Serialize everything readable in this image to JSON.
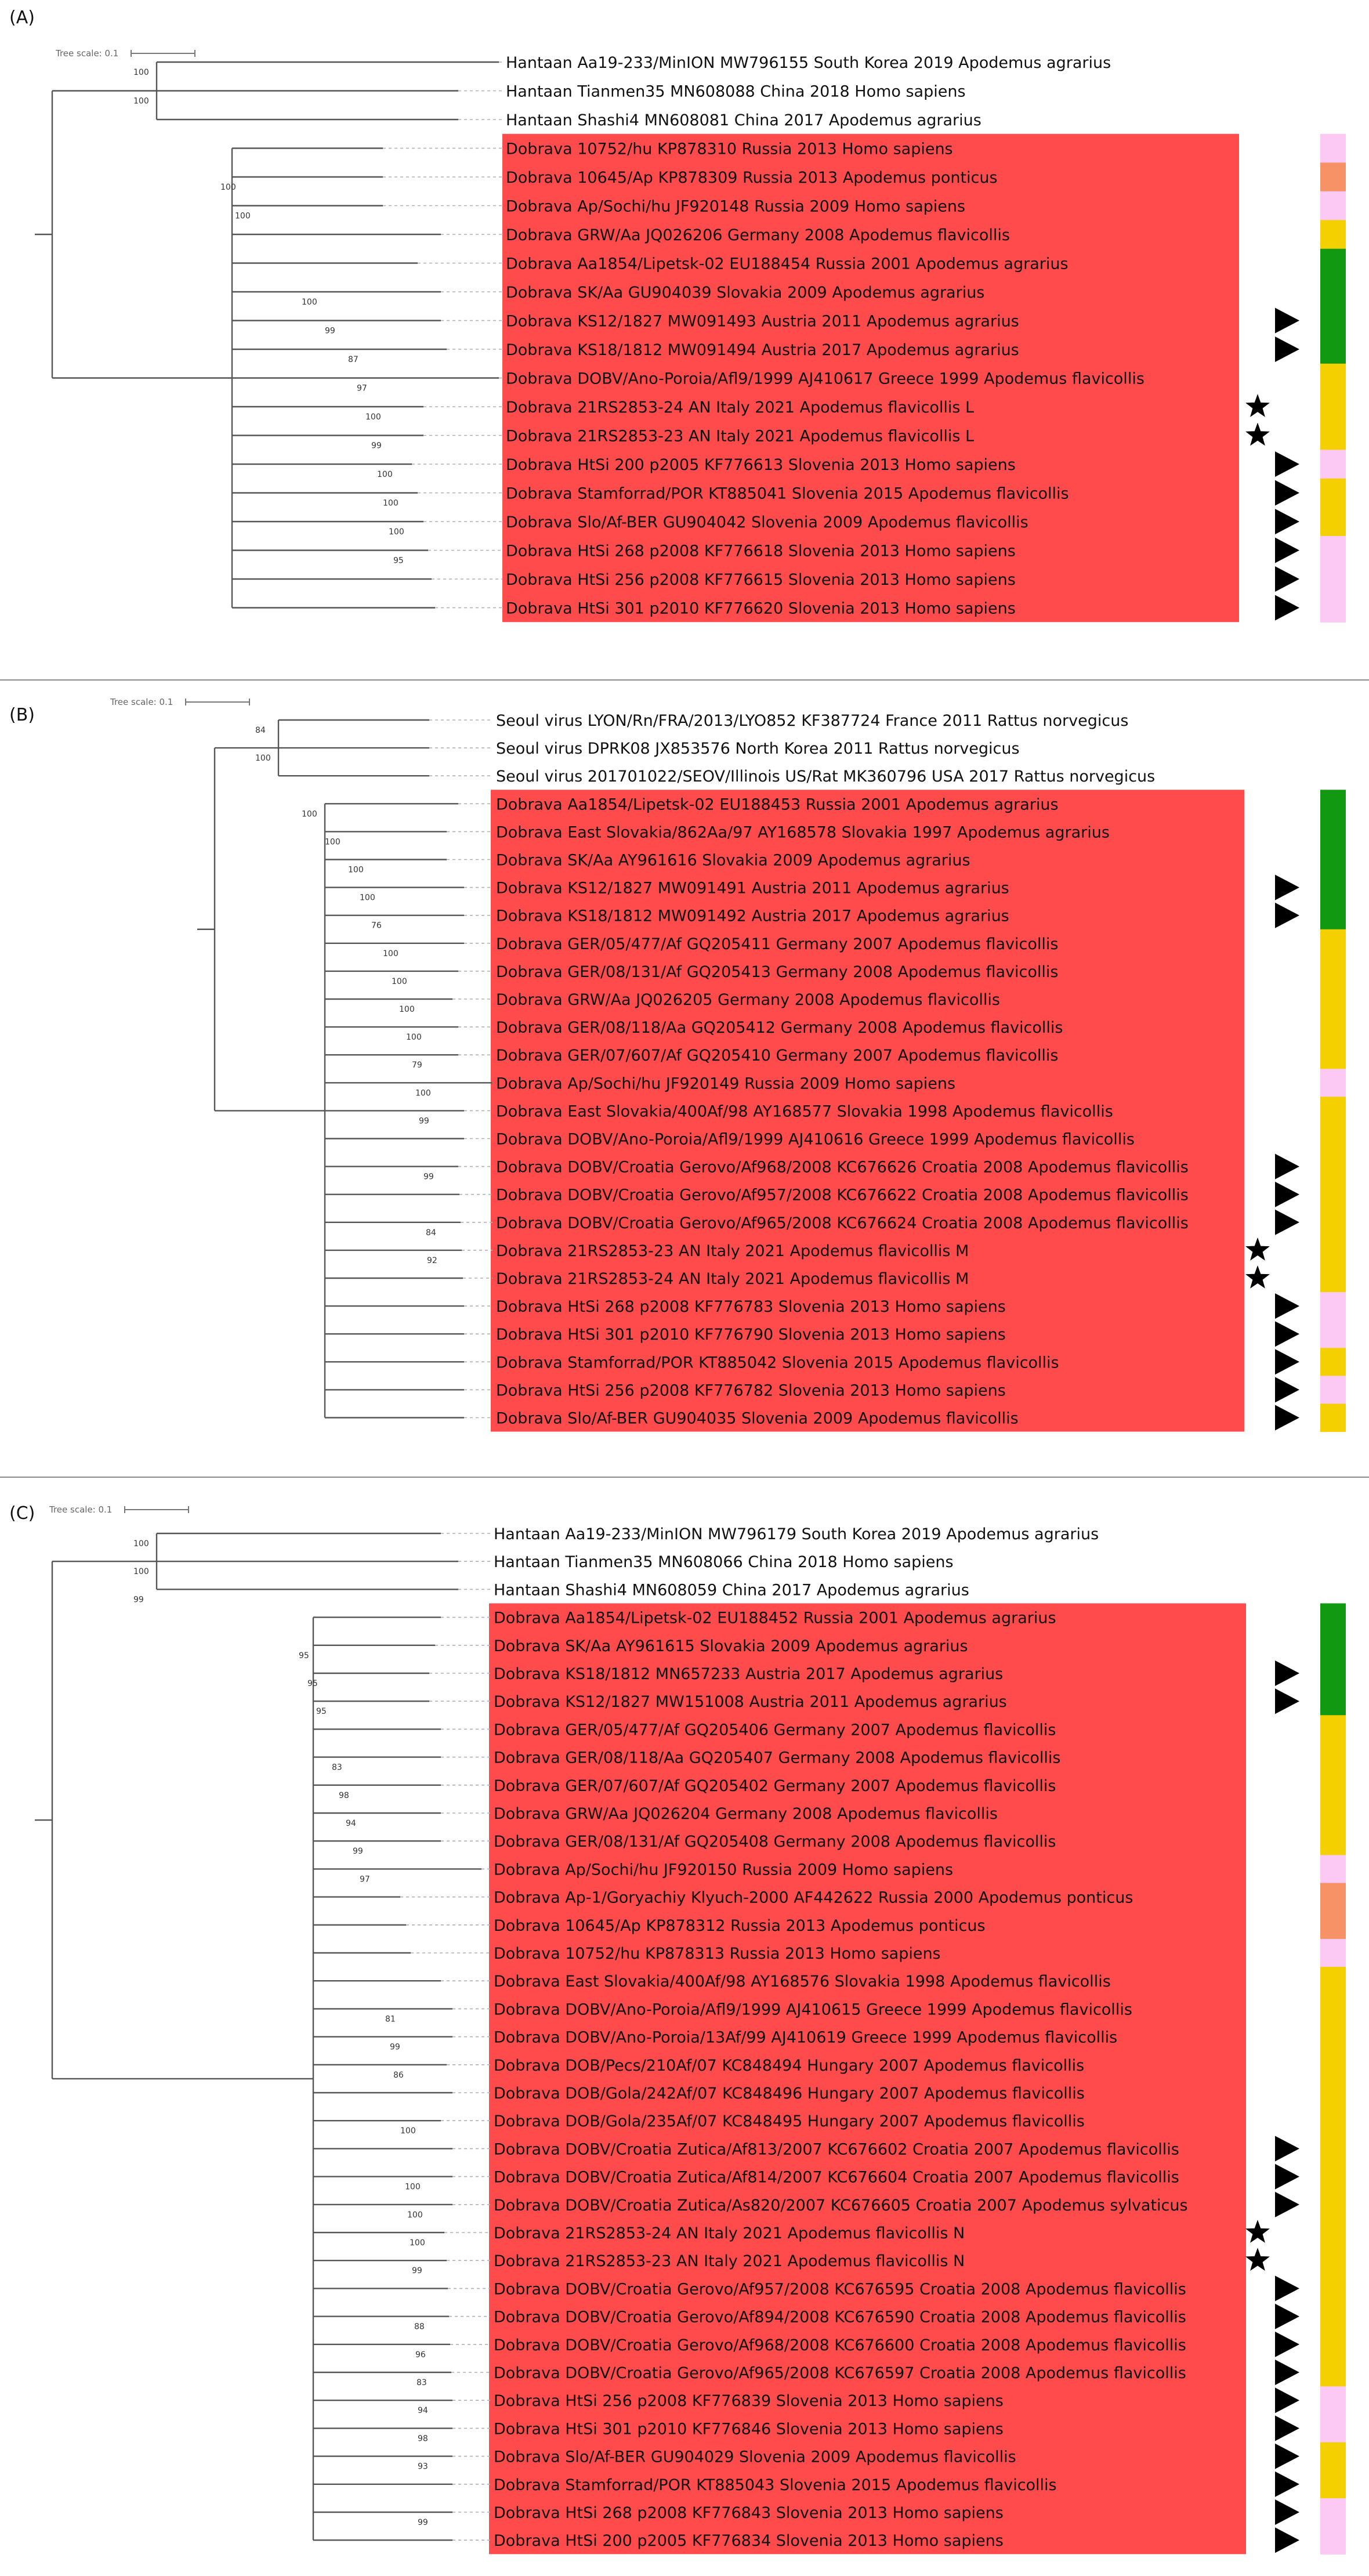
{
  "colors": {
    "highlight": "#ff4b4b",
    "green": "#119a11",
    "yellow": "#f5d000",
    "pink": "#fcc8f4",
    "orange": "#f79266",
    "divider": "#8a8a8a"
  },
  "panels": [
    {
      "label": "(A)",
      "scale_label": "Tree scale: 0.1",
      "leaves": [
        {
          "text": "Hantaan Aa19-233/MinION MW796155 South Korea 2019 Apodemus agrarius",
          "hl": false,
          "strip": "",
          "mark": ""
        },
        {
          "text": "Hantaan Tianmen35 MN608088 China 2018 Homo sapiens",
          "hl": false,
          "strip": "",
          "mark": ""
        },
        {
          "text": "Hantaan Shashi4 MN608081 China 2017 Apodemus agrarius",
          "hl": false,
          "strip": "",
          "mark": ""
        },
        {
          "text": "Dobrava 10752/hu KP878310 Russia 2013 Homo sapiens",
          "hl": true,
          "strip": "pink",
          "mark": ""
        },
        {
          "text": "Dobrava 10645/Ap KP878309 Russia 2013 Apodemus ponticus",
          "hl": true,
          "strip": "orange",
          "mark": ""
        },
        {
          "text": "Dobrava Ap/Sochi/hu JF920148 Russia 2009 Homo sapiens",
          "hl": true,
          "strip": "pink",
          "mark": ""
        },
        {
          "text": "Dobrava GRW/Aa JQ026206 Germany 2008 Apodemus flavicollis",
          "hl": true,
          "strip": "yellow",
          "mark": ""
        },
        {
          "text": "Dobrava Aa1854/Lipetsk-02 EU188454 Russia 2001 Apodemus agrarius",
          "hl": true,
          "strip": "green",
          "mark": ""
        },
        {
          "text": "Dobrava SK/Aa GU904039 Slovakia 2009 Apodemus agrarius",
          "hl": true,
          "strip": "green",
          "mark": ""
        },
        {
          "text": "Dobrava KS12/1827 MW091493 Austria 2011 Apodemus agrarius",
          "hl": true,
          "strip": "green",
          "mark": "triangle"
        },
        {
          "text": "Dobrava KS18/1812 MW091494 Austria 2017 Apodemus agrarius",
          "hl": true,
          "strip": "green",
          "mark": "triangle"
        },
        {
          "text": "Dobrava DOBV/Ano-Poroia/Afl9/1999 AJ410617 Greece 1999 Apodemus flavicollis",
          "hl": true,
          "strip": "yellow",
          "mark": ""
        },
        {
          "text": "Dobrava 21RS2853-24 AN Italy 2021 Apodemus flavicollis L",
          "hl": true,
          "strip": "yellow",
          "mark": "star"
        },
        {
          "text": "Dobrava 21RS2853-23 AN Italy 2021 Apodemus flavicollis L",
          "hl": true,
          "strip": "yellow",
          "mark": "star"
        },
        {
          "text": "Dobrava HtSi 200 p2005 KF776613 Slovenia 2013 Homo sapiens",
          "hl": true,
          "strip": "pink",
          "mark": "triangle"
        },
        {
          "text": "Dobrava Stamforrad/POR KT885041 Slovenia 2015 Apodemus flavicollis",
          "hl": true,
          "strip": "yellow",
          "mark": "triangle"
        },
        {
          "text": "Dobrava Slo/Af-BER GU904042 Slovenia 2009 Apodemus flavicollis",
          "hl": true,
          "strip": "yellow",
          "mark": "triangle"
        },
        {
          "text": "Dobrava HtSi 268 p2008 KF776618 Slovenia 2013 Homo sapiens",
          "hl": true,
          "strip": "pink",
          "mark": "triangle"
        },
        {
          "text": "Dobrava HtSi 256 p2008 KF776615 Slovenia 2013 Homo sapiens",
          "hl": true,
          "strip": "pink",
          "mark": "triangle"
        },
        {
          "text": "Dobrava HtSi 301 p2010 KF776620 Slovenia 2013 Homo sapiens",
          "hl": true,
          "strip": "pink",
          "mark": "triangle"
        }
      ],
      "bootstrap": [
        {
          "value": "100",
          "leaf": 0
        },
        {
          "value": "100",
          "leaf": 1
        },
        {
          "value": "100",
          "leaf": 4
        },
        {
          "value": "100",
          "leaf": 5
        },
        {
          "value": "100",
          "leaf": 8
        },
        {
          "value": "99",
          "leaf": 9
        },
        {
          "value": "87",
          "leaf": 10
        },
        {
          "value": "97",
          "leaf": 11
        },
        {
          "value": "100",
          "leaf": 12
        },
        {
          "value": "99",
          "leaf": 13
        },
        {
          "value": "100",
          "leaf": 14
        },
        {
          "value": "100",
          "leaf": 15
        },
        {
          "value": "100",
          "leaf": 16
        },
        {
          "value": "95",
          "leaf": 17
        }
      ]
    },
    {
      "label": "(B)",
      "scale_label": "Tree scale: 0.1",
      "leaves": [
        {
          "text": "Seoul virus LYON/Rn/FRA/2013/LYO852 KF387724 France 2011 Rattus norvegicus",
          "hl": false,
          "strip": "",
          "mark": ""
        },
        {
          "text": "Seoul virus DPRK08 JX853576 North Korea 2011 Rattus norvegicus",
          "hl": false,
          "strip": "",
          "mark": ""
        },
        {
          "text": "Seoul virus 201701022/SEOV/Illinois US/Rat MK360796 USA 2017 Rattus norvegicus",
          "hl": false,
          "strip": "",
          "mark": ""
        },
        {
          "text": "Dobrava Aa1854/Lipetsk-02 EU188453 Russia 2001 Apodemus agrarius",
          "hl": true,
          "strip": "green",
          "mark": ""
        },
        {
          "text": "Dobrava East Slovakia/862Aa/97 AY168578 Slovakia 1997 Apodemus agrarius",
          "hl": true,
          "strip": "green",
          "mark": ""
        },
        {
          "text": "Dobrava SK/Aa AY961616 Slovakia 2009 Apodemus agrarius",
          "hl": true,
          "strip": "green",
          "mark": ""
        },
        {
          "text": "Dobrava KS12/1827 MW091491 Austria 2011 Apodemus agrarius",
          "hl": true,
          "strip": "green",
          "mark": "triangle"
        },
        {
          "text": "Dobrava KS18/1812 MW091492 Austria 2017 Apodemus agrarius",
          "hl": true,
          "strip": "green",
          "mark": "triangle"
        },
        {
          "text": "Dobrava GER/05/477/Af GQ205411 Germany 2007 Apodemus flavicollis",
          "hl": true,
          "strip": "yellow",
          "mark": ""
        },
        {
          "text": "Dobrava GER/08/131/Af GQ205413 Germany 2008 Apodemus flavicollis",
          "hl": true,
          "strip": "yellow",
          "mark": ""
        },
        {
          "text": "Dobrava GRW/Aa JQ026205 Germany 2008 Apodemus flavicollis",
          "hl": true,
          "strip": "yellow",
          "mark": ""
        },
        {
          "text": "Dobrava GER/08/118/Aa GQ205412 Germany 2008 Apodemus flavicollis",
          "hl": true,
          "strip": "yellow",
          "mark": ""
        },
        {
          "text": "Dobrava GER/07/607/Af GQ205410 Germany 2007 Apodemus flavicollis",
          "hl": true,
          "strip": "yellow",
          "mark": ""
        },
        {
          "text": "Dobrava Ap/Sochi/hu JF920149 Russia 2009 Homo sapiens",
          "hl": true,
          "strip": "pink",
          "mark": ""
        },
        {
          "text": "Dobrava East Slovakia/400Af/98 AY168577 Slovakia 1998 Apodemus flavicollis",
          "hl": true,
          "strip": "yellow",
          "mark": ""
        },
        {
          "text": "Dobrava DOBV/Ano-Poroia/Afl9/1999 AJ410616 Greece 1999 Apodemus flavicollis",
          "hl": true,
          "strip": "yellow",
          "mark": ""
        },
        {
          "text": "Dobrava DOBV/Croatia Gerovo/Af968/2008 KC676626 Croatia 2008 Apodemus flavicollis",
          "hl": true,
          "strip": "yellow",
          "mark": "triangle"
        },
        {
          "text": "Dobrava DOBV/Croatia Gerovo/Af957/2008 KC676622 Croatia 2008 Apodemus flavicollis",
          "hl": true,
          "strip": "yellow",
          "mark": "triangle"
        },
        {
          "text": "Dobrava DOBV/Croatia Gerovo/Af965/2008 KC676624 Croatia 2008 Apodemus flavicollis",
          "hl": true,
          "strip": "yellow",
          "mark": "triangle"
        },
        {
          "text": "Dobrava 21RS2853-23 AN Italy 2021 Apodemus flavicollis M",
          "hl": true,
          "strip": "yellow",
          "mark": "star"
        },
        {
          "text": "Dobrava 21RS2853-24 AN Italy 2021 Apodemus flavicollis M",
          "hl": true,
          "strip": "yellow",
          "mark": "star"
        },
        {
          "text": "Dobrava HtSi 268 p2008 KF776783 Slovenia 2013 Homo sapiens",
          "hl": true,
          "strip": "pink",
          "mark": "triangle"
        },
        {
          "text": "Dobrava HtSi 301 p2010 KF776790 Slovenia 2013 Homo sapiens",
          "hl": true,
          "strip": "pink",
          "mark": "triangle"
        },
        {
          "text": "Dobrava Stamforrad/POR KT885042 Slovenia 2015 Apodemus flavicollis",
          "hl": true,
          "strip": "yellow",
          "mark": "triangle"
        },
        {
          "text": "Dobrava HtSi 256 p2008 KF776782 Slovenia 2013 Homo sapiens",
          "hl": true,
          "strip": "pink",
          "mark": "triangle"
        },
        {
          "text": "Dobrava Slo/Af-BER GU904035 Slovenia 2009 Apodemus flavicollis",
          "hl": true,
          "strip": "yellow",
          "mark": "triangle"
        }
      ],
      "bootstrap": [
        {
          "value": "84",
          "leaf": 0
        },
        {
          "value": "100",
          "leaf": 1
        },
        {
          "value": "100",
          "leaf": 3
        },
        {
          "value": "100",
          "leaf": 4
        },
        {
          "value": "100",
          "leaf": 5
        },
        {
          "value": "100",
          "leaf": 6
        },
        {
          "value": "76",
          "leaf": 7
        },
        {
          "value": "100",
          "leaf": 8
        },
        {
          "value": "100",
          "leaf": 9
        },
        {
          "value": "100",
          "leaf": 10
        },
        {
          "value": "100",
          "leaf": 11
        },
        {
          "value": "79",
          "leaf": 12
        },
        {
          "value": "100",
          "leaf": 13
        },
        {
          "value": "99",
          "leaf": 14
        },
        {
          "value": "99",
          "leaf": 16
        },
        {
          "value": "84",
          "leaf": 18
        },
        {
          "value": "92",
          "leaf": 19
        }
      ]
    },
    {
      "label": "(C)",
      "scale_label": "Tree scale: 0.1",
      "leaves": [
        {
          "text": "Hantaan Aa19-233/MinION MW796179 South Korea 2019 Apodemus agrarius",
          "hl": false,
          "strip": "",
          "mark": ""
        },
        {
          "text": "Hantaan Tianmen35 MN608066 China 2018 Homo sapiens",
          "hl": false,
          "strip": "",
          "mark": ""
        },
        {
          "text": "Hantaan Shashi4 MN608059 China 2017 Apodemus agrarius",
          "hl": false,
          "strip": "",
          "mark": ""
        },
        {
          "text": "Dobrava Aa1854/Lipetsk-02 EU188452 Russia 2001 Apodemus agrarius",
          "hl": true,
          "strip": "green",
          "mark": ""
        },
        {
          "text": "Dobrava SK/Aa AY961615 Slovakia 2009 Apodemus agrarius",
          "hl": true,
          "strip": "green",
          "mark": ""
        },
        {
          "text": "Dobrava KS18/1812 MN657233 Austria 2017 Apodemus agrarius",
          "hl": true,
          "strip": "green",
          "mark": "triangle"
        },
        {
          "text": "Dobrava KS12/1827 MW151008 Austria 2011 Apodemus agrarius",
          "hl": true,
          "strip": "green",
          "mark": "triangle"
        },
        {
          "text": "Dobrava GER/05/477/Af GQ205406 Germany 2007 Apodemus flavicollis",
          "hl": true,
          "strip": "yellow",
          "mark": ""
        },
        {
          "text": "Dobrava GER/08/118/Aa GQ205407 Germany 2008 Apodemus flavicollis",
          "hl": true,
          "strip": "yellow",
          "mark": ""
        },
        {
          "text": "Dobrava GER/07/607/Af GQ205402 Germany 2007 Apodemus flavicollis",
          "hl": true,
          "strip": "yellow",
          "mark": ""
        },
        {
          "text": "Dobrava GRW/Aa JQ026204 Germany 2008 Apodemus flavicollis",
          "hl": true,
          "strip": "yellow",
          "mark": ""
        },
        {
          "text": "Dobrava GER/08/131/Af GQ205408 Germany 2008 Apodemus flavicollis",
          "hl": true,
          "strip": "yellow",
          "mark": ""
        },
        {
          "text": "Dobrava Ap/Sochi/hu JF920150 Russia 2009 Homo sapiens",
          "hl": true,
          "strip": "pink",
          "mark": ""
        },
        {
          "text": "Dobrava Ap-1/Goryachiy Klyuch-2000 AF442622 Russia 2000 Apodemus ponticus",
          "hl": true,
          "strip": "orange",
          "mark": ""
        },
        {
          "text": "Dobrava 10645/Ap KP878312 Russia 2013 Apodemus ponticus",
          "hl": true,
          "strip": "orange",
          "mark": ""
        },
        {
          "text": "Dobrava 10752/hu KP878313 Russia 2013 Homo sapiens",
          "hl": true,
          "strip": "pink",
          "mark": ""
        },
        {
          "text": "Dobrava East Slovakia/400Af/98 AY168576 Slovakia 1998 Apodemus flavicollis",
          "hl": true,
          "strip": "yellow",
          "mark": ""
        },
        {
          "text": "Dobrava DOBV/Ano-Poroia/Afl9/1999 AJ410615 Greece 1999 Apodemus flavicollis",
          "hl": true,
          "strip": "yellow",
          "mark": ""
        },
        {
          "text": "Dobrava DOBV/Ano-Poroia/13Af/99 AJ410619 Greece 1999 Apodemus flavicollis",
          "hl": true,
          "strip": "yellow",
          "mark": ""
        },
        {
          "text": "Dobrava DOB/Pecs/210Af/07 KC848494 Hungary 2007 Apodemus flavicollis",
          "hl": true,
          "strip": "yellow",
          "mark": ""
        },
        {
          "text": "Dobrava DOB/Gola/242Af/07 KC848496 Hungary 2007 Apodemus flavicollis",
          "hl": true,
          "strip": "yellow",
          "mark": ""
        },
        {
          "text": "Dobrava DOB/Gola/235Af/07 KC848495 Hungary 2007 Apodemus flavicollis",
          "hl": true,
          "strip": "yellow",
          "mark": ""
        },
        {
          "text": "Dobrava DOBV/Croatia Zutica/Af813/2007 KC676602 Croatia 2007 Apodemus flavicollis",
          "hl": true,
          "strip": "yellow",
          "mark": "triangle"
        },
        {
          "text": "Dobrava DOBV/Croatia Zutica/Af814/2007 KC676604 Croatia 2007 Apodemus flavicollis",
          "hl": true,
          "strip": "yellow",
          "mark": "triangle"
        },
        {
          "text": "Dobrava DOBV/Croatia Zutica/As820/2007 KC676605 Croatia 2007 Apodemus sylvaticus",
          "hl": true,
          "strip": "yellow",
          "mark": "triangle"
        },
        {
          "text": "Dobrava 21RS2853-24 AN Italy 2021 Apodemus flavicollis N",
          "hl": true,
          "strip": "yellow",
          "mark": "star"
        },
        {
          "text": "Dobrava 21RS2853-23 AN Italy 2021 Apodemus flavicollis N",
          "hl": true,
          "strip": "yellow",
          "mark": "star"
        },
        {
          "text": "Dobrava DOBV/Croatia Gerovo/Af957/2008 KC676595 Croatia 2008 Apodemus flavicollis",
          "hl": true,
          "strip": "yellow",
          "mark": "triangle"
        },
        {
          "text": "Dobrava DOBV/Croatia Gerovo/Af894/2008 KC676590 Croatia 2008 Apodemus flavicollis",
          "hl": true,
          "strip": "yellow",
          "mark": "triangle"
        },
        {
          "text": "Dobrava DOBV/Croatia Gerovo/Af968/2008 KC676600 Croatia 2008 Apodemus flavicollis",
          "hl": true,
          "strip": "yellow",
          "mark": "triangle"
        },
        {
          "text": "Dobrava DOBV/Croatia Gerovo/Af965/2008 KC676597 Croatia 2008 Apodemus flavicollis",
          "hl": true,
          "strip": "yellow",
          "mark": "triangle"
        },
        {
          "text": "Dobrava HtSi 256 p2008 KF776839 Slovenia 2013 Homo sapiens",
          "hl": true,
          "strip": "pink",
          "mark": "triangle"
        },
        {
          "text": "Dobrava HtSi 301 p2010 KF776846 Slovenia 2013 Homo sapiens",
          "hl": true,
          "strip": "pink",
          "mark": "triangle"
        },
        {
          "text": "Dobrava Slo/Af-BER GU904029 Slovenia 2009 Apodemus flavicollis",
          "hl": true,
          "strip": "yellow",
          "mark": "triangle"
        },
        {
          "text": "Dobrava Stamforrad/POR KT885043 Slovenia 2015 Apodemus flavicollis",
          "hl": true,
          "strip": "yellow",
          "mark": "triangle"
        },
        {
          "text": "Dobrava HtSi 268 p2008 KF776843 Slovenia 2013 Homo sapiens",
          "hl": true,
          "strip": "pink",
          "mark": "triangle"
        },
        {
          "text": "Dobrava HtSi 200 p2005 KF776834 Slovenia 2013 Homo sapiens",
          "hl": true,
          "strip": "pink",
          "mark": "triangle"
        }
      ],
      "bootstrap": [
        {
          "value": "100",
          "leaf": 0
        },
        {
          "value": "100",
          "leaf": 1
        },
        {
          "value": "99",
          "leaf": 2
        },
        {
          "value": "95",
          "leaf": 4
        },
        {
          "value": "95",
          "leaf": 5
        },
        {
          "value": "95",
          "leaf": 6
        },
        {
          "value": "83",
          "leaf": 8
        },
        {
          "value": "98",
          "leaf": 9
        },
        {
          "value": "94",
          "leaf": 10
        },
        {
          "value": "99",
          "leaf": 11
        },
        {
          "value": "97",
          "leaf": 12
        },
        {
          "value": "81",
          "leaf": 17
        },
        {
          "value": "99",
          "leaf": 18
        },
        {
          "value": "86",
          "leaf": 19
        },
        {
          "value": "100",
          "leaf": 21
        },
        {
          "value": "100",
          "leaf": 23
        },
        {
          "value": "100",
          "leaf": 24
        },
        {
          "value": "100",
          "leaf": 25
        },
        {
          "value": "99",
          "leaf": 26
        },
        {
          "value": "88",
          "leaf": 28
        },
        {
          "value": "96",
          "leaf": 29
        },
        {
          "value": "83",
          "leaf": 30
        },
        {
          "value": "94",
          "leaf": 31
        },
        {
          "value": "98",
          "leaf": 32
        },
        {
          "value": "93",
          "leaf": 33
        },
        {
          "value": "99",
          "leaf": 35
        }
      ]
    }
  ]
}
